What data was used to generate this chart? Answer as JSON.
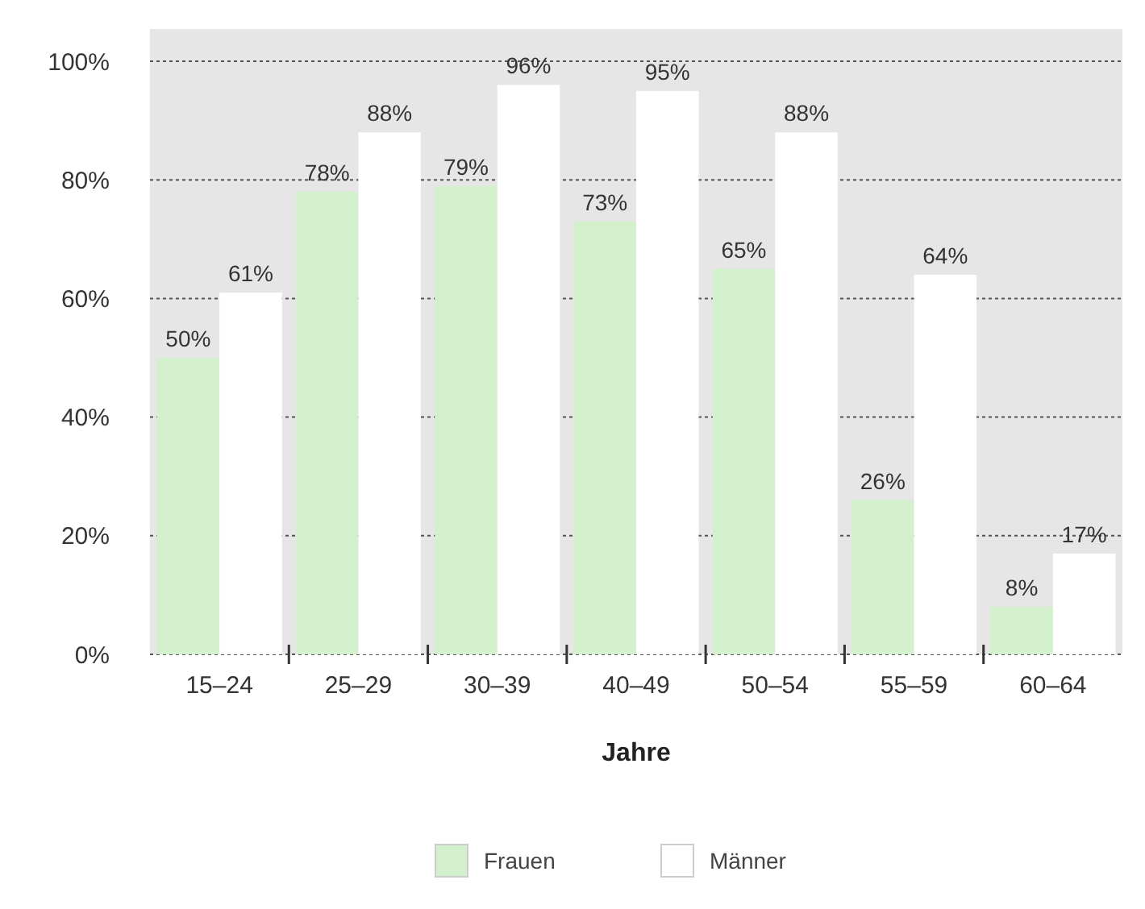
{
  "chart_data": {
    "type": "bar",
    "xlabel": "Jahre",
    "categories": [
      "15–24",
      "25–29",
      "30–39",
      "40–49",
      "50–54",
      "55–59",
      "60–64"
    ],
    "series": [
      {
        "name": "Frauen",
        "color": "#d3f0cd",
        "values": [
          50,
          78,
          79,
          73,
          65,
          26,
          8
        ],
        "value_labels": [
          "50%",
          "78%",
          "79%",
          "73%",
          "65%",
          "26%",
          "8%"
        ]
      },
      {
        "name": "Männer",
        "color": "#ffffff",
        "values": [
          61,
          88,
          96,
          95,
          88,
          64,
          17
        ],
        "value_labels": [
          "61%",
          "88%",
          "96%",
          "95%",
          "88%",
          "64%",
          "17%"
        ]
      }
    ],
    "ylim": [
      0,
      100
    ],
    "yticks": [
      {
        "value": 0,
        "label": "0%"
      },
      {
        "value": 20,
        "label": "20%"
      },
      {
        "value": 40,
        "label": "40%"
      },
      {
        "value": 60,
        "label": "60%"
      },
      {
        "value": 80,
        "label": "80%"
      },
      {
        "value": 100,
        "label": "100%"
      }
    ],
    "grid": "y",
    "legend": "bottom"
  }
}
